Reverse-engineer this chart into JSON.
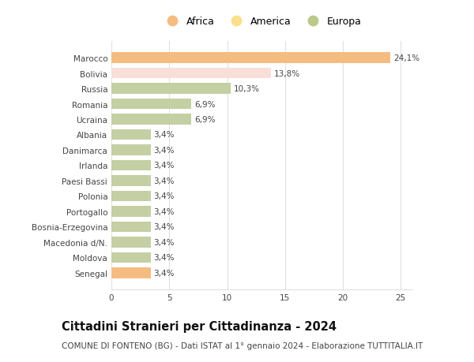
{
  "categories": [
    "Marocco",
    "Bolivia",
    "Russia",
    "Romania",
    "Ucraina",
    "Albania",
    "Danimarca",
    "Irlanda",
    "Paesi Bassi",
    "Polonia",
    "Portogallo",
    "Bosnia-Erzegovina",
    "Macedonia d/N.",
    "Moldova",
    "Senegal"
  ],
  "values": [
    24.1,
    13.8,
    10.3,
    6.9,
    6.9,
    3.4,
    3.4,
    3.4,
    3.4,
    3.4,
    3.4,
    3.4,
    3.4,
    3.4,
    3.4
  ],
  "labels": [
    "24,1%",
    "13,8%",
    "10,3%",
    "6,9%",
    "6,9%",
    "3,4%",
    "3,4%",
    "3,4%",
    "3,4%",
    "3,4%",
    "3,4%",
    "3,4%",
    "3,4%",
    "3,4%",
    "3,4%"
  ],
  "continents": [
    "Africa",
    "America",
    "Europa",
    "Europa",
    "Europa",
    "Europa",
    "Europa",
    "Europa",
    "Europa",
    "Europa",
    "Europa",
    "Europa",
    "Europa",
    "Europa",
    "Africa"
  ],
  "colors": {
    "Africa": "#F5BC82",
    "America": "#FADED8",
    "Europa": "#C4CFA4"
  },
  "legend_colors": {
    "Africa": "#F5BC82",
    "America": "#FAE08A",
    "Europa": "#B8C98A"
  },
  "title": "Cittadini Stranieri per Cittadinanza - 2024",
  "subtitle": "COMUNE DI FONTENO (BG) - Dati ISTAT al 1° gennaio 2024 - Elaborazione TUTTITALIA.IT",
  "xlim": [
    0,
    26
  ],
  "xticks": [
    0,
    5,
    10,
    15,
    20,
    25
  ],
  "background_color": "#ffffff",
  "bar_height": 0.7,
  "grid_color": "#e0e0e0",
  "label_fontsize": 7.5,
  "title_fontsize": 10.5,
  "subtitle_fontsize": 7.5
}
